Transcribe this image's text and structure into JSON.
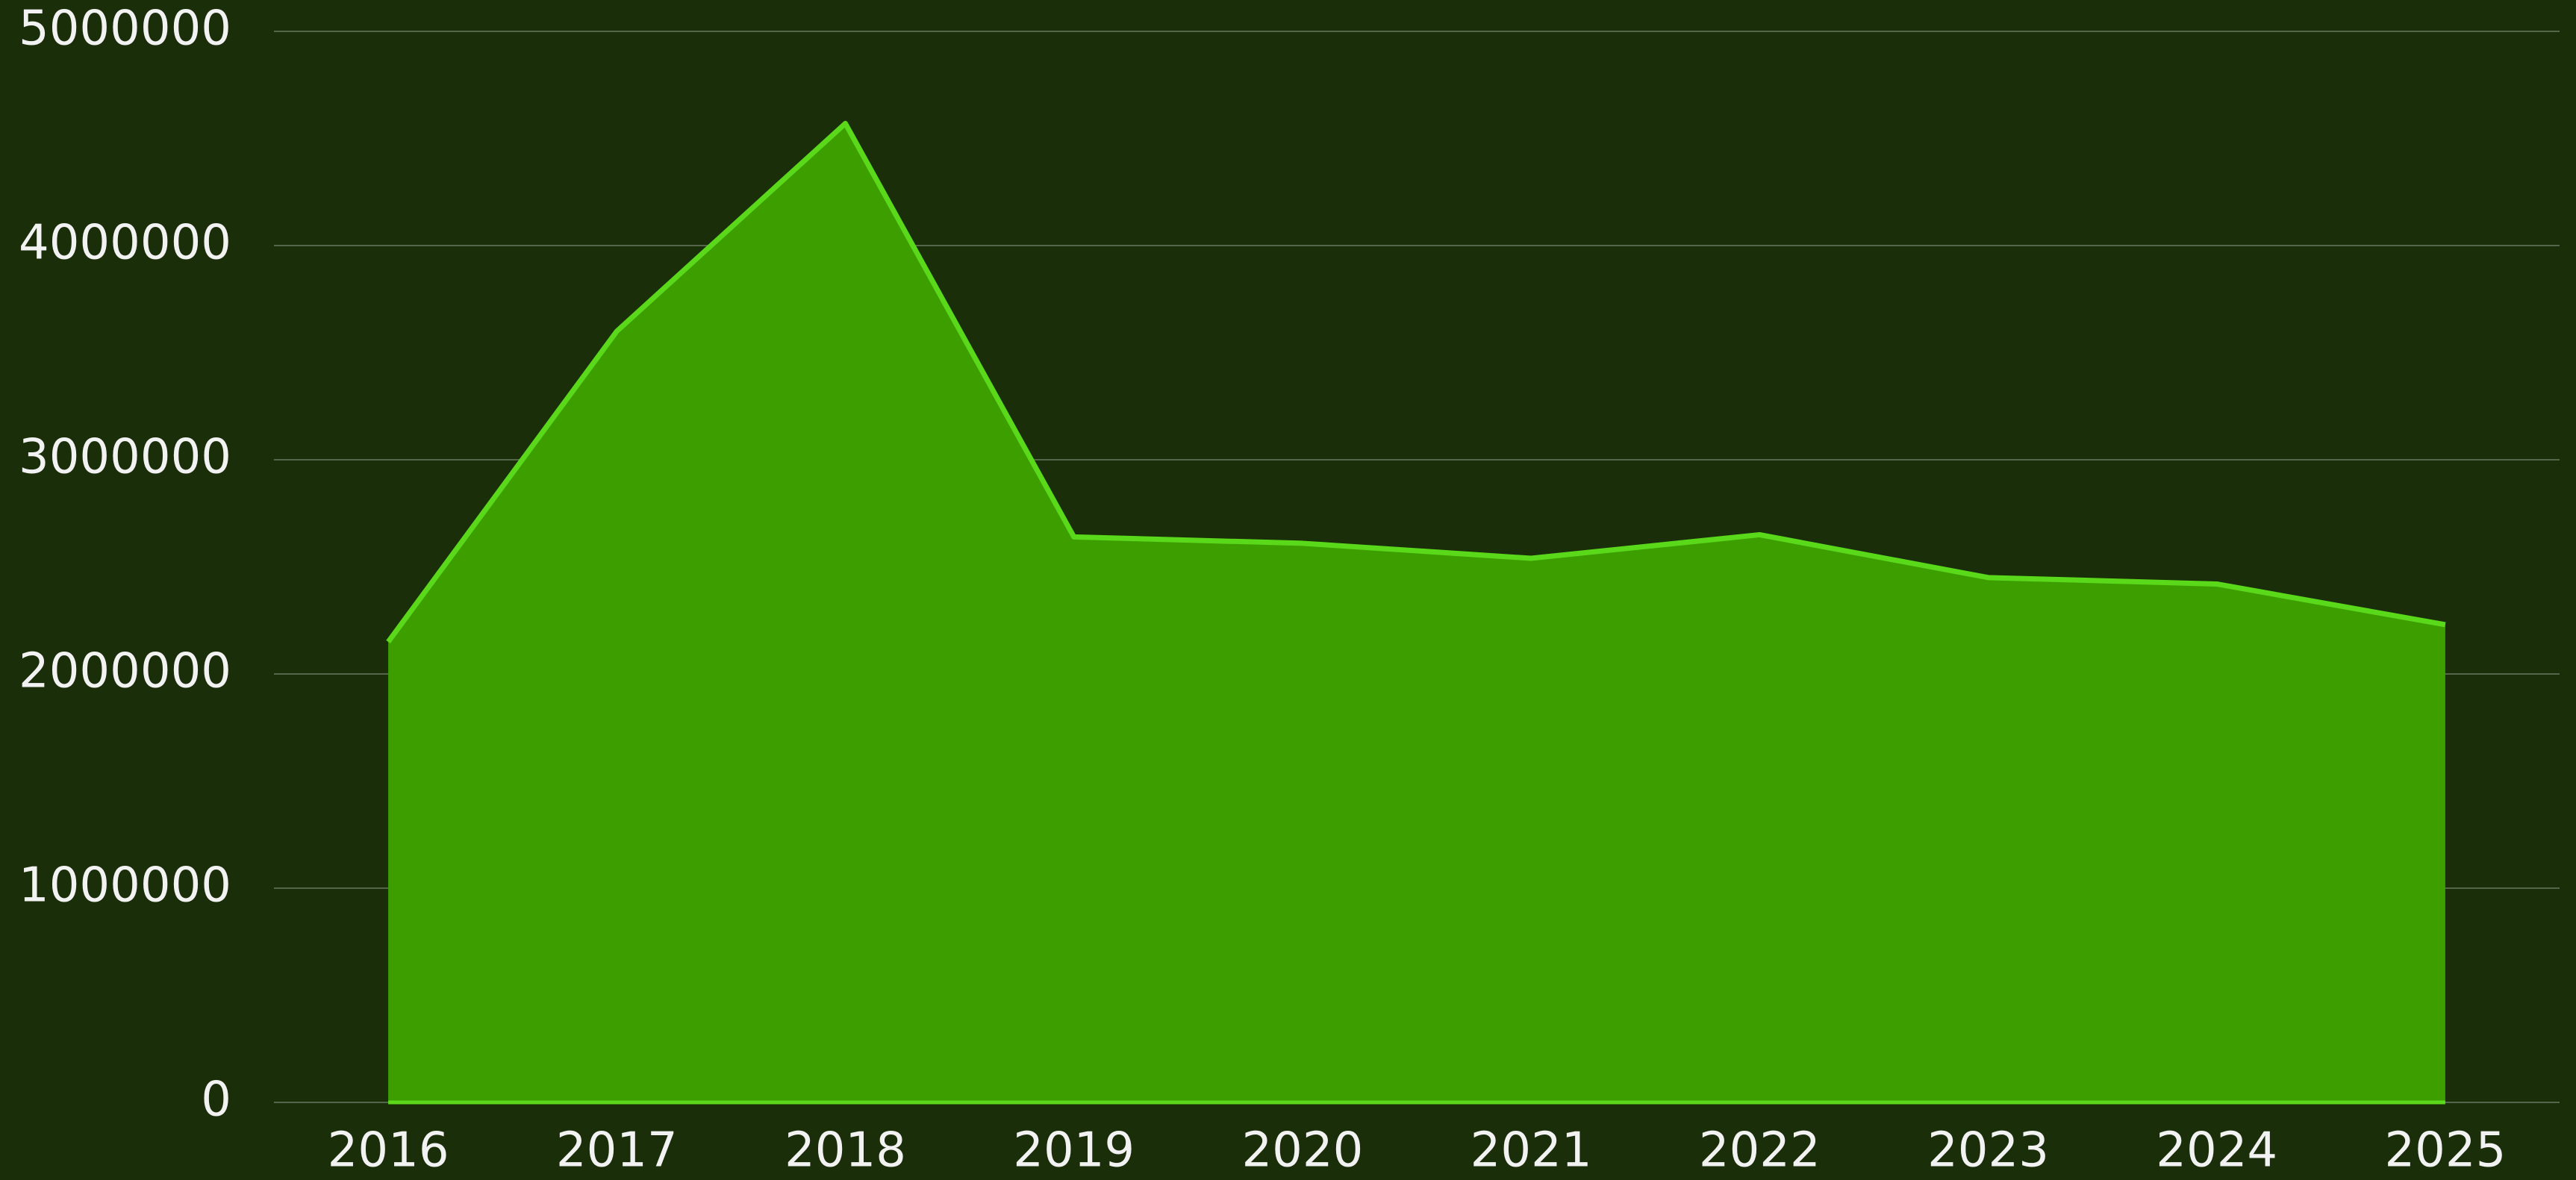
{
  "chart_data": {
    "type": "area",
    "categories": [
      "2016",
      "2017",
      "2018",
      "2019",
      "2020",
      "2021",
      "2022",
      "2023",
      "2024",
      "2025"
    ],
    "values": [
      2150000,
      3600000,
      4570000,
      2640000,
      2610000,
      2540000,
      2650000,
      2450000,
      2420000,
      2230000
    ],
    "color": "#5ad81a",
    "fill": "#3d9e00",
    "ylim": [
      0,
      5000000
    ],
    "yticks": [
      0,
      1000000,
      2000000,
      3000000,
      4000000,
      5000000
    ],
    "grid": true
  }
}
